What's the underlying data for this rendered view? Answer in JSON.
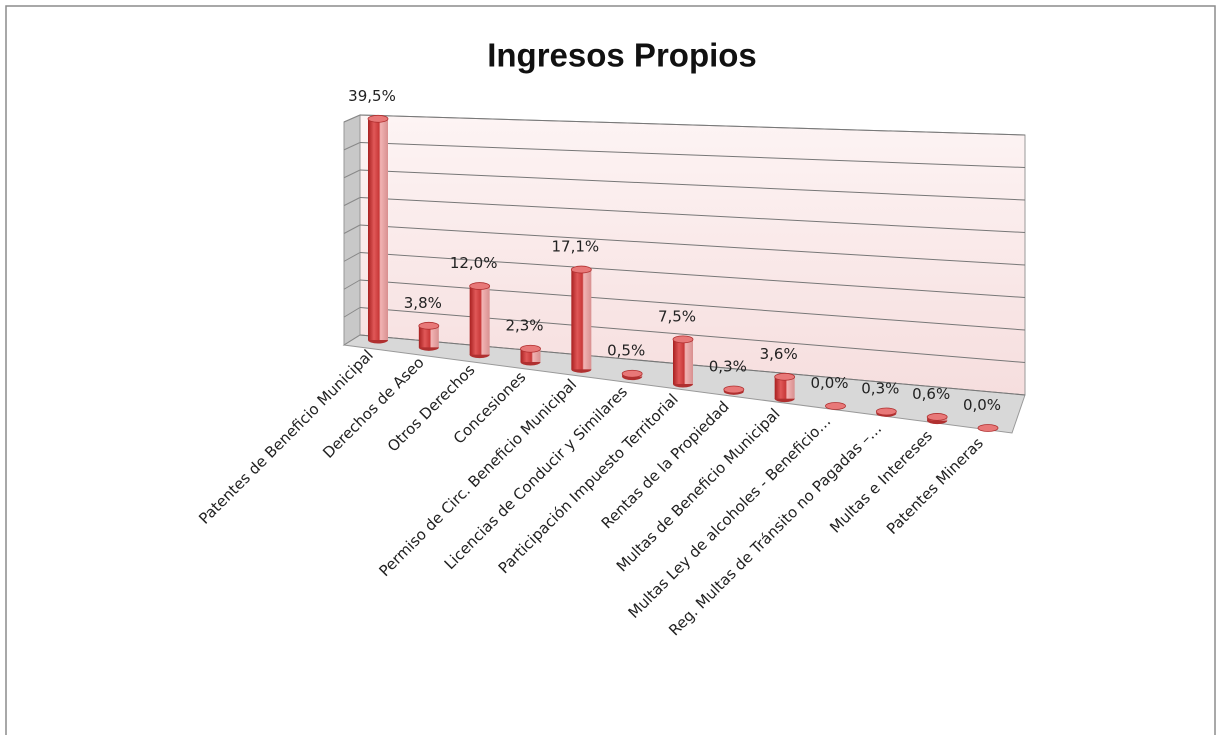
{
  "chart_data": {
    "type": "bar3d",
    "title": "Ingresos Propios",
    "categories": [
      "Patentes de Beneficio Municipal",
      "Derechos de Aseo",
      "Otros Derechos",
      "Concesiones",
      "Permiso de Circ. Beneficio Municipal",
      "Licencias de Conducir y Similares",
      "Participación Impuesto Territorial",
      "Rentas de la Propiedad",
      "Multas de Beneficio Municipal",
      "Multas Ley de alcoholes - Beneficio…",
      "Reg. Multas de Tránsito no Pagadas –…",
      "Multas e Intereses",
      "Patentes Mineras"
    ],
    "values": [
      39.5,
      3.8,
      12.0,
      2.3,
      17.1,
      0.5,
      7.5,
      0.3,
      3.6,
      0.0,
      0.3,
      0.6,
      0.0
    ],
    "value_labels": [
      "39,5%",
      "3,8%",
      "12,0%",
      "2,3%",
      "17,1%",
      "0,5%",
      "7,5%",
      "0,3%",
      "3,6%",
      "0,0%",
      "0,3%",
      "0,6%",
      "0,0%"
    ],
    "color": "#d23a3a",
    "ylim": [
      0,
      40
    ],
    "yticks": [
      0,
      5,
      10,
      15,
      20,
      25,
      30,
      35,
      40
    ],
    "grid": true
  }
}
